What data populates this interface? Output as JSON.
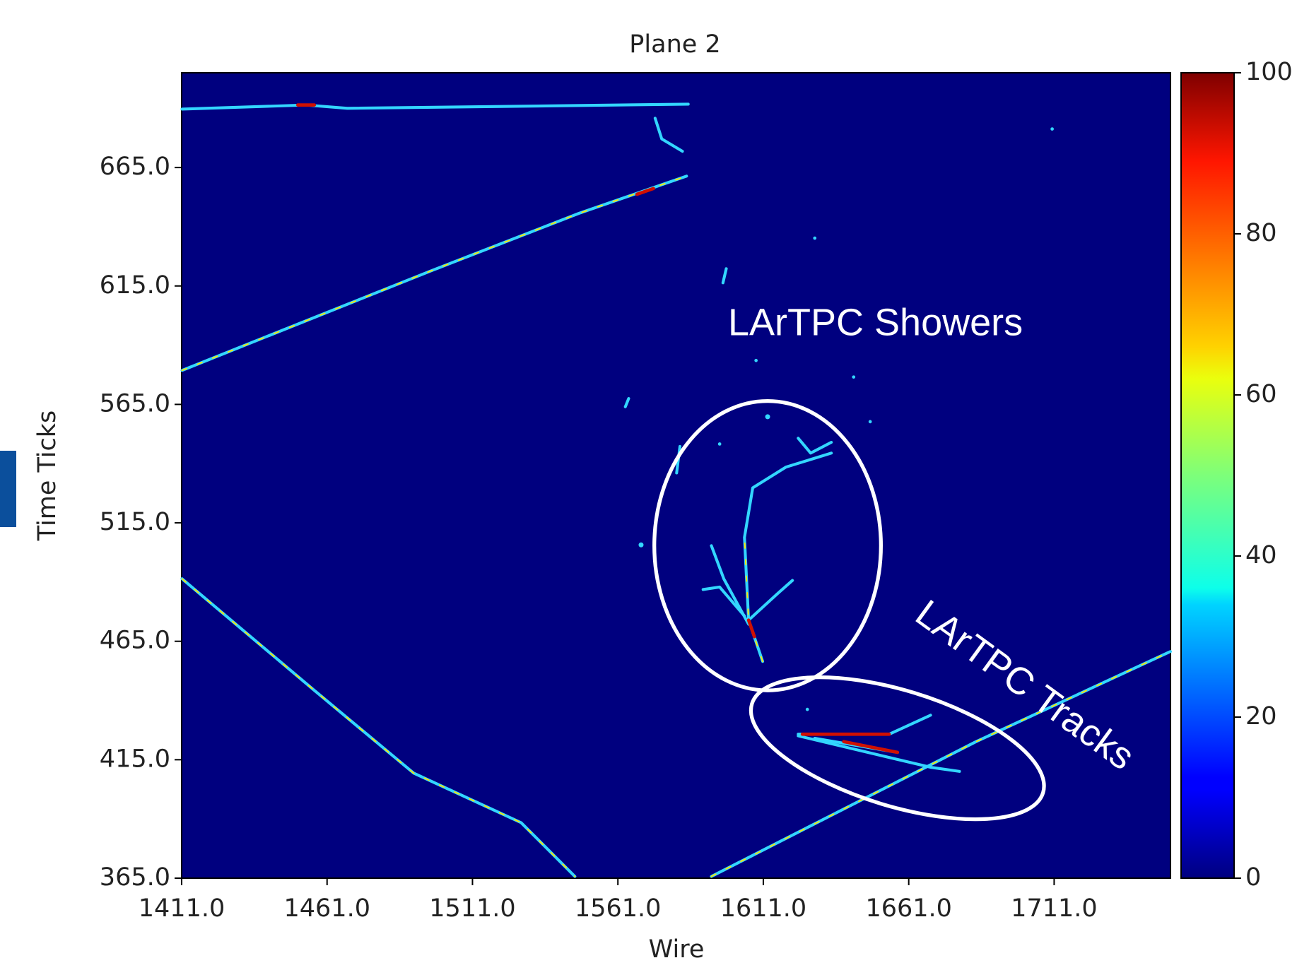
{
  "chart_data": {
    "type": "heatmap",
    "title": "Plane 2",
    "xlabel": "Wire",
    "ylabel": "Time Ticks",
    "xlim": [
      1411,
      1751
    ],
    "ylim": [
      365,
      705
    ],
    "xticks": [
      {
        "value": 1411,
        "label": "1411.0"
      },
      {
        "value": 1461,
        "label": "1461.0"
      },
      {
        "value": 1511,
        "label": "1511.0"
      },
      {
        "value": 1561,
        "label": "1561.0"
      },
      {
        "value": 1611,
        "label": "1611.0"
      },
      {
        "value": 1661,
        "label": "1661.0"
      },
      {
        "value": 1711,
        "label": "1711.0"
      }
    ],
    "yticks": [
      {
        "value": 365,
        "label": "365.0"
      },
      {
        "value": 415,
        "label": "415.0"
      },
      {
        "value": 465,
        "label": "465.0"
      },
      {
        "value": 515,
        "label": "515.0"
      },
      {
        "value": 565,
        "label": "565.0"
      },
      {
        "value": 615,
        "label": "615.0"
      },
      {
        "value": 665,
        "label": "665.0"
      }
    ],
    "colormap": "jet",
    "zlim": [
      0,
      100
    ],
    "zticks": [
      0,
      20,
      40,
      60,
      80,
      100
    ],
    "annotations": [
      "LArTPC Showers",
      "LArTPC Tracks"
    ]
  }
}
